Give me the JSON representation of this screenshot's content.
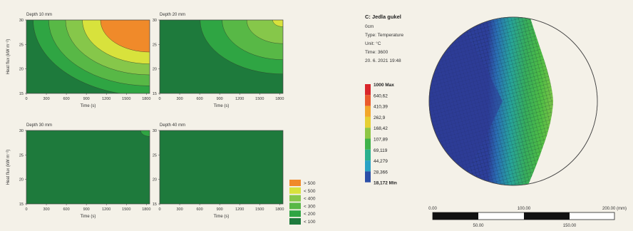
{
  "chart_data": [
    {
      "type": "heatmap",
      "subplots": [
        {
          "title": "Depth 10 mm",
          "centers": [
            [
              1850,
              30
            ]
          ],
          "levels": [
            {
              "threshold": "< 100",
              "r": 0.12
            },
            {
              "threshold": "< 200",
              "r": 0.24
            },
            {
              "threshold": "< 300",
              "r": 0.37
            },
            {
              "threshold": "< 400",
              "r": 0.5
            },
            {
              "threshold": "< 500",
              "r": 0.64
            },
            {
              "threshold": "> 500",
              "r": 0.86
            }
          ]
        },
        {
          "title": "Depth 20 mm",
          "centers": [
            [
              1850,
              30
            ]
          ],
          "levels": [
            {
              "threshold": "< 100",
              "r": 0.38
            },
            {
              "threshold": "< 200",
              "r": 0.55
            },
            {
              "threshold": "< 300",
              "r": 0.74
            },
            {
              "threshold": "< 400",
              "r": 0.94
            },
            {
              "threshold": "< 500",
              "r": 1.14
            },
            {
              "threshold": "> 500",
              "r": 1.4
            }
          ]
        },
        {
          "title": "Depth 30 mm",
          "centers": [
            [
              1850,
              30
            ]
          ],
          "levels": [
            {
              "threshold": "< 100",
              "r": 0.95
            },
            {
              "threshold": "< 200",
              "r": 1.22
            },
            {
              "threshold": "< 300",
              "r": 1.62
            },
            {
              "threshold": "< 400",
              "r": 1.92
            },
            {
              "threshold": "< 500",
              "r": 2.3
            }
          ]
        },
        {
          "title": "Depth 40 mm",
          "centers": [
            [
              1850,
              30
            ]
          ],
          "levels": [
            {
              "threshold": "< 100",
              "r": 1.35
            },
            {
              "threshold": "< 200",
              "r": 1.9
            }
          ]
        }
      ],
      "xlabel": "Time (s)",
      "ylabel": "Heat flux (kW m⁻²)",
      "xlim": [
        0,
        1850
      ],
      "ylim": [
        15,
        30
      ],
      "x_ticks": [
        0,
        300,
        600,
        900,
        1200,
        1500,
        1800
      ],
      "y_ticks": [
        15,
        20,
        25,
        30
      ],
      "colors": {
        "< 100": "#1e7a3c",
        "< 200": "#2fa543",
        "< 300": "#58b846",
        "< 400": "#86c74a",
        "< 500": "#d8e23c",
        "> 500": "#f08a2a"
      },
      "legend": {
        "placement": "bottom-right",
        "entries": [
          "> 500",
          "< 500",
          "< 400",
          "< 300",
          "< 200",
          "< 100"
        ]
      }
    },
    {
      "type": "heatmap",
      "info": {
        "name": "C: Jedla gukel",
        "unit_line": "0cm",
        "type_line": "Type: Temperature",
        "unit_label": "Unit: °C",
        "time_line": "Time: 3600",
        "date_line": "20. 6. 2021 19:48"
      },
      "colorbar": {
        "labels": [
          "1000 Max",
          "640,62",
          "410,39",
          "262,9",
          "168,42",
          "107,89",
          "69,119",
          "44,279",
          "28,366",
          "18,172 Min"
        ],
        "colors": [
          "#d9262b",
          "#ea5a2c",
          "#f2a62a",
          "#e6cf33",
          "#8ec645",
          "#3fb24a",
          "#2ab08e",
          "#29a2c4",
          "#2b4fa8"
        ]
      },
      "scale_bar": {
        "top_ticks": [
          "0.00",
          "100.00",
          "200.00 (mm)"
        ],
        "bottom_ticks": [
          "50.00",
          "150.00"
        ]
      }
    }
  ]
}
